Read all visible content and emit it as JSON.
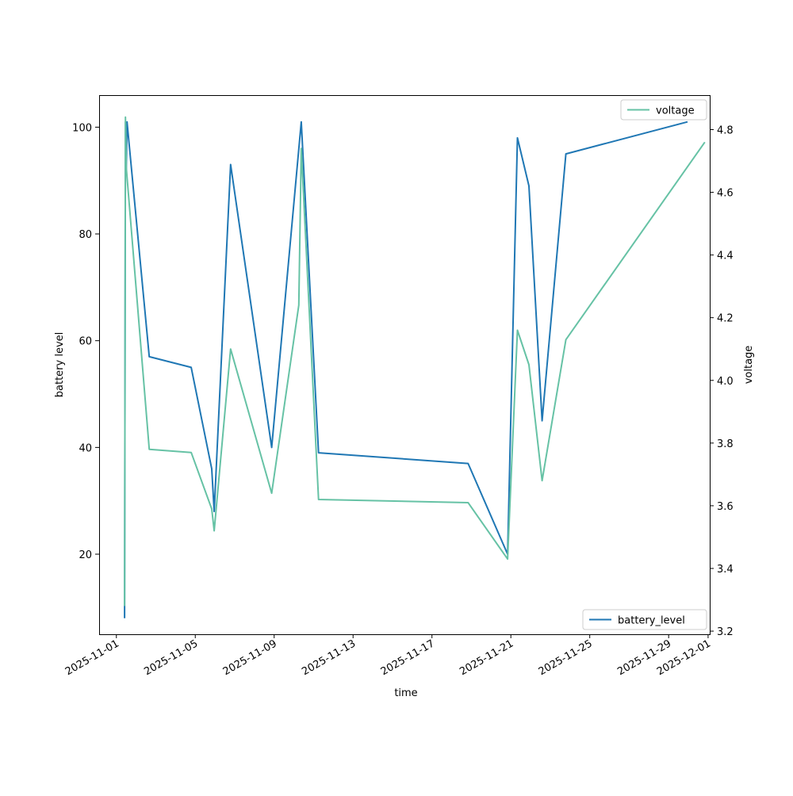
{
  "chart_data": {
    "type": "line",
    "xlabel": "time",
    "ylabel": "battery level",
    "y2label": "voltage",
    "x_ticks": [
      "2025-11-01",
      "2025-11-05",
      "2025-11-09",
      "2025-11-13",
      "2025-11-17",
      "2025-11-21",
      "2025-11-25",
      "2025-11-29",
      "2025-12-01"
    ],
    "xlim": [
      "2025-10-31T03:00",
      "2025-12-01T02:00"
    ],
    "ylim": [
      5,
      106
    ],
    "y_ticks": [
      20,
      40,
      60,
      80,
      100
    ],
    "y2lim": [
      3.19,
      4.91
    ],
    "y2_ticks": [
      3.2,
      3.4,
      3.6,
      3.8,
      4.0,
      4.2,
      4.4,
      4.6,
      4.8
    ],
    "grid": false,
    "series": [
      {
        "name": "battery_level",
        "axis": "left",
        "color": "#1f77b4",
        "legend_position": "lower-right",
        "points": [
          [
            "2025-11-01T10:00",
            8
          ],
          [
            "2025-11-01T11:00",
            101
          ],
          [
            "2025-11-01T12:00",
            92
          ],
          [
            "2025-11-01T13:00",
            101
          ],
          [
            "2025-11-02T16:00",
            57
          ],
          [
            "2025-11-04T19:00",
            55
          ],
          [
            "2025-11-05T20:00",
            36
          ],
          [
            "2025-11-05T23:00",
            28
          ],
          [
            "2025-11-06T19:00",
            93
          ],
          [
            "2025-11-08T21:00",
            40
          ],
          [
            "2025-11-10T09:00",
            101
          ],
          [
            "2025-11-11T06:00",
            39
          ],
          [
            "2025-11-18T20:00",
            37
          ],
          [
            "2025-11-20T20:00",
            20
          ],
          [
            "2025-11-21T08:00",
            98
          ],
          [
            "2025-11-21T22:00",
            89
          ],
          [
            "2025-11-22T14:00",
            45
          ],
          [
            "2025-11-23T19:00",
            95
          ],
          [
            "2025-11-29T23:00",
            101
          ]
        ]
      },
      {
        "name": "voltage",
        "axis": "right",
        "color": "#66c2a5",
        "legend_position": "upper-right",
        "points": [
          [
            "2025-11-01T10:00",
            3.28
          ],
          [
            "2025-11-01T11:00",
            4.84
          ],
          [
            "2025-11-01T12:00",
            4.68
          ],
          [
            "2025-11-02T16:00",
            3.78
          ],
          [
            "2025-11-04T19:00",
            3.77
          ],
          [
            "2025-11-05T20:00",
            3.59
          ],
          [
            "2025-11-05T23:00",
            3.52
          ],
          [
            "2025-11-06T19:00",
            4.1
          ],
          [
            "2025-11-08T21:00",
            3.64
          ],
          [
            "2025-11-10T06:00",
            4.24
          ],
          [
            "2025-11-10T09:00",
            4.74
          ],
          [
            "2025-11-11T06:00",
            3.62
          ],
          [
            "2025-11-18T20:00",
            3.61
          ],
          [
            "2025-11-20T20:00",
            3.43
          ],
          [
            "2025-11-21T08:00",
            4.16
          ],
          [
            "2025-11-21T22:00",
            4.05
          ],
          [
            "2025-11-22T14:00",
            3.68
          ],
          [
            "2025-11-23T19:00",
            4.13
          ],
          [
            "2025-11-30T20:00",
            4.76
          ]
        ]
      }
    ]
  }
}
